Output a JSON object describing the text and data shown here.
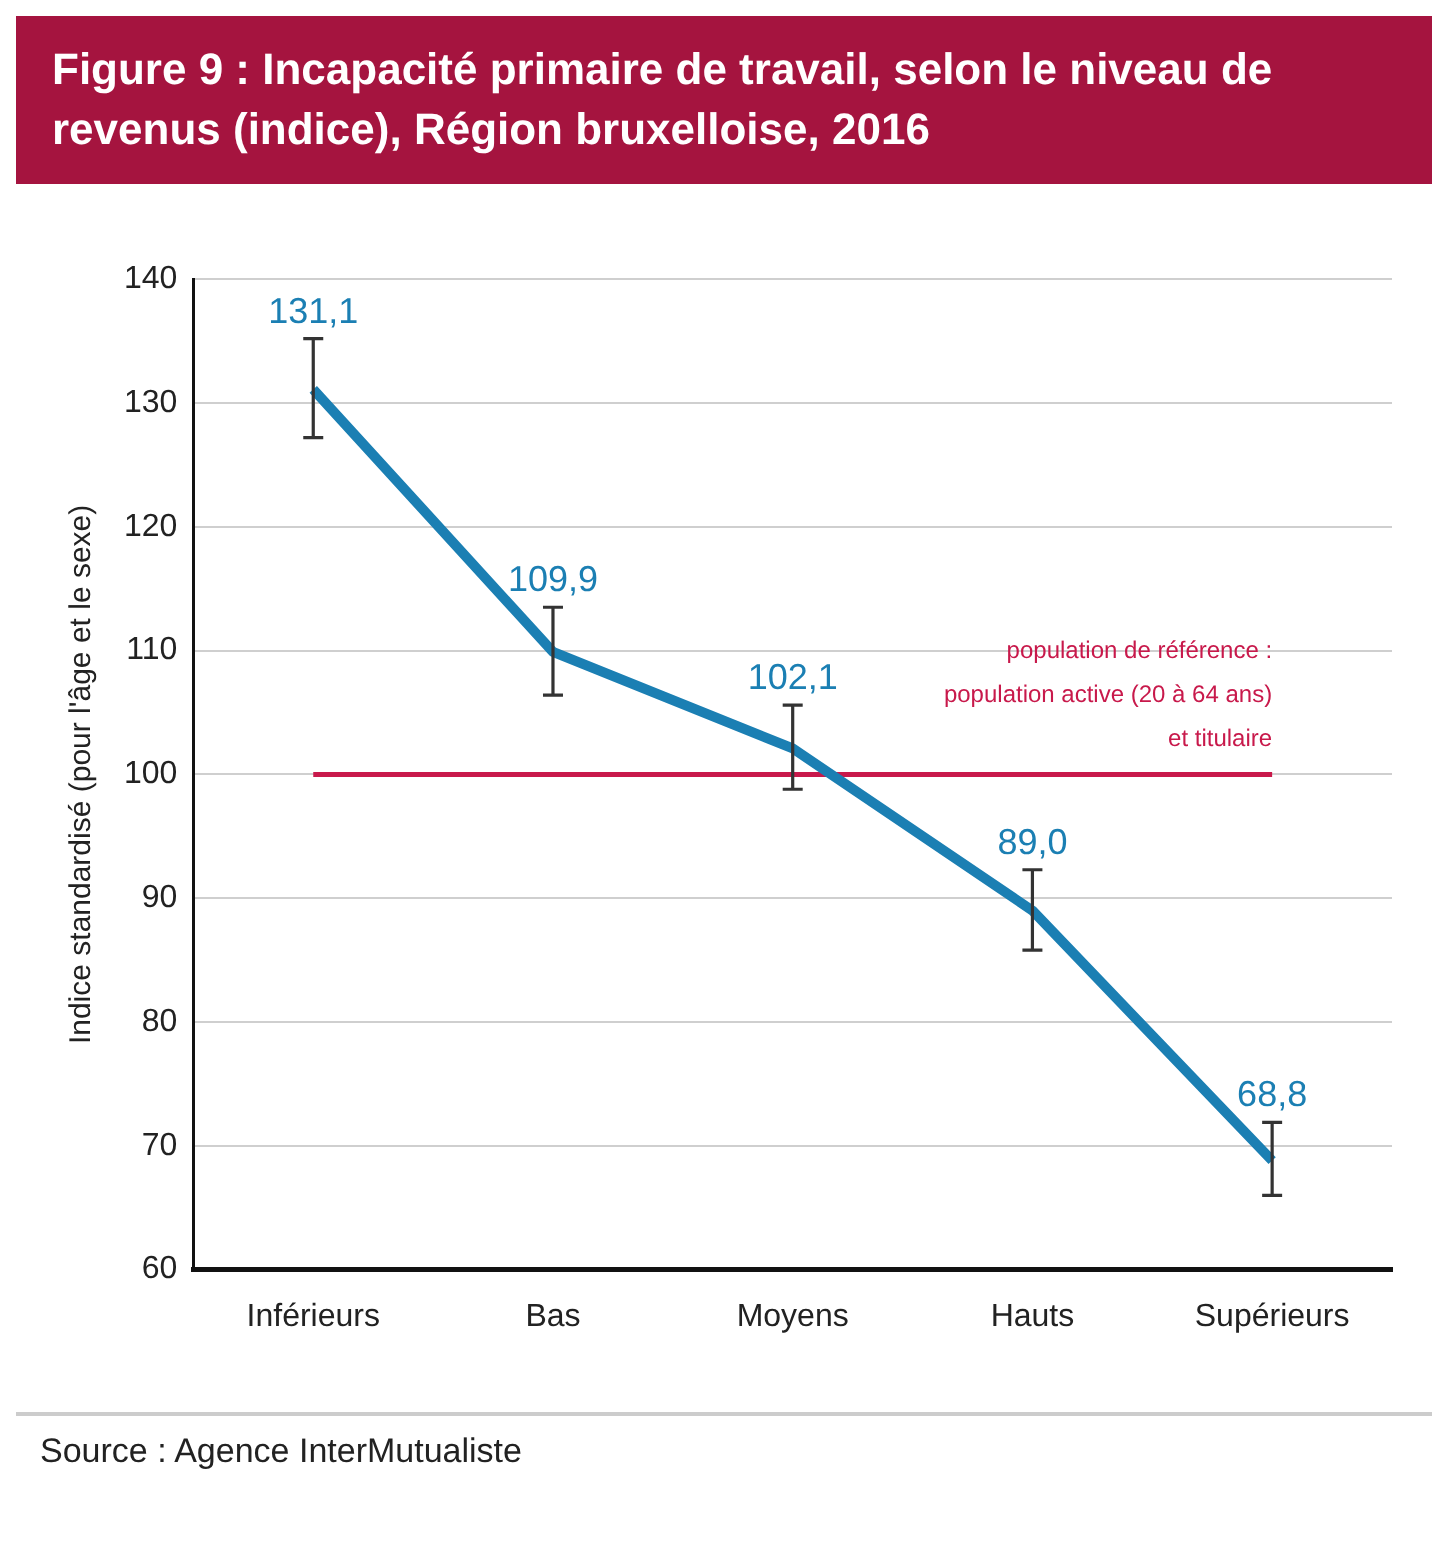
{
  "chart_data": {
    "type": "line",
    "title": "Figure 9 : Incapacité primaire de travail, selon le niveau de revenus (indice), Région bruxelloise, 2016",
    "ylabel": "Indice standardisé (pour l'âge et le sexe)",
    "categories": [
      "Inférieurs",
      "Bas",
      "Moyens",
      "Hauts",
      "Supérieurs"
    ],
    "series": [
      {
        "color": "#1b7fb3",
        "values": [
          131.1,
          109.9,
          102.1,
          89.0,
          68.8
        ],
        "value_labels": [
          "131,1",
          "109,9",
          "102,1",
          "89,0",
          "68,8"
        ],
        "errors": [
          [
            127.2,
            135.2
          ],
          [
            106.4,
            113.5
          ],
          [
            98.8,
            105.6
          ],
          [
            85.8,
            92.3
          ],
          [
            66.0,
            71.9
          ]
        ]
      }
    ],
    "ylim": [
      60,
      140
    ],
    "yticks": [
      60,
      70,
      80,
      90,
      100,
      110,
      120,
      130,
      140
    ],
    "grid": "y",
    "legend": false,
    "marker": "none",
    "line_style": "solid",
    "ref_lines": [
      {
        "axis": "y",
        "value": 100,
        "label": "population de référence :\npopulation active (20 à 64 ans)\net titulaire",
        "color": "#c8194b"
      }
    ],
    "annotations": [
      "Source : Agence InterMutualiste"
    ]
  }
}
